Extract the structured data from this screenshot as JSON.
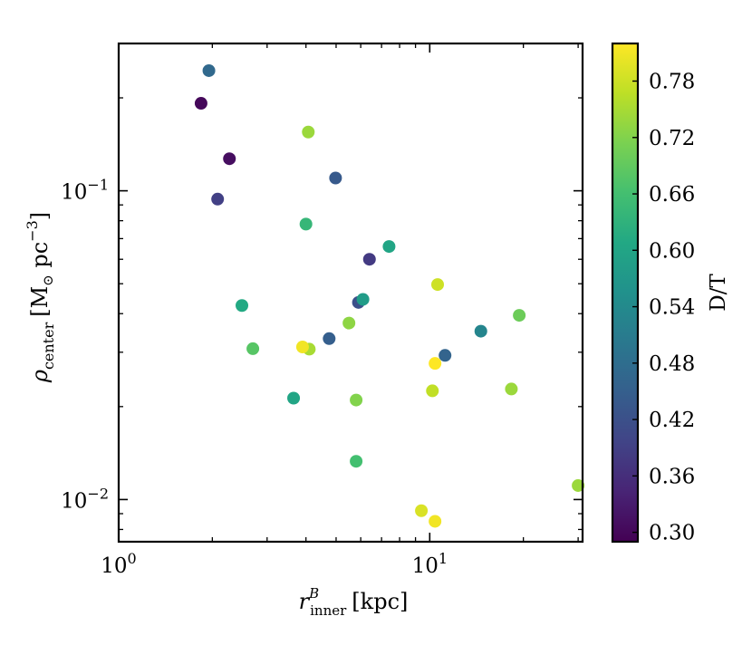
{
  "chart_data": {
    "type": "scatter",
    "x_scale": "log",
    "y_scale": "log",
    "xlim": [
      1,
      31
    ],
    "ylim": [
      0.0073,
      0.3
    ],
    "x_ticks": [
      {
        "value": 1,
        "base": "10",
        "exp": "0"
      },
      {
        "value": 10,
        "base": "10",
        "exp": "1"
      }
    ],
    "y_ticks": [
      {
        "value": 0.01,
        "base": "10",
        "exp": "−2"
      },
      {
        "value": 0.1,
        "base": "10",
        "exp": "−1"
      }
    ],
    "xlabel": {
      "symbol": "r",
      "sup": "B",
      "sub": "inner",
      "unit": "[kpc]"
    },
    "ylabel": {
      "symbol": "ρ",
      "sub": "center",
      "unit_pre": "[M",
      "unit_sun": "⊙",
      "unit_mid": " pc",
      "unit_sup": "−3",
      "unit_post": "]"
    },
    "colorbar": {
      "label": "D/T",
      "colormap": "viridis",
      "vmin": 0.29,
      "vmax": 0.82,
      "ticks": [
        "0.30",
        "0.36",
        "0.42",
        "0.48",
        "0.54",
        "0.60",
        "0.66",
        "0.72",
        "0.78"
      ]
    },
    "points": [
      {
        "x": 1.95,
        "y": 0.245,
        "c": 0.47
      },
      {
        "x": 1.84,
        "y": 0.192,
        "c": 0.3
      },
      {
        "x": 2.27,
        "y": 0.127,
        "c": 0.31
      },
      {
        "x": 2.08,
        "y": 0.094,
        "c": 0.39
      },
      {
        "x": 4.07,
        "y": 0.155,
        "c": 0.74
      },
      {
        "x": 4.98,
        "y": 0.11,
        "c": 0.44
      },
      {
        "x": 4.0,
        "y": 0.078,
        "c": 0.64
      },
      {
        "x": 7.4,
        "y": 0.066,
        "c": 0.6
      },
      {
        "x": 6.4,
        "y": 0.06,
        "c": 0.38
      },
      {
        "x": 2.49,
        "y": 0.0425,
        "c": 0.61
      },
      {
        "x": 5.9,
        "y": 0.0435,
        "c": 0.42
      },
      {
        "x": 6.1,
        "y": 0.0445,
        "c": 0.58
      },
      {
        "x": 10.6,
        "y": 0.0497,
        "c": 0.78
      },
      {
        "x": 19.4,
        "y": 0.0395,
        "c": 0.7
      },
      {
        "x": 5.5,
        "y": 0.0373,
        "c": 0.73
      },
      {
        "x": 14.6,
        "y": 0.0351,
        "c": 0.53
      },
      {
        "x": 2.7,
        "y": 0.0308,
        "c": 0.68
      },
      {
        "x": 4.1,
        "y": 0.0307,
        "c": 0.75
      },
      {
        "x": 3.9,
        "y": 0.0312,
        "c": 0.81
      },
      {
        "x": 4.75,
        "y": 0.0332,
        "c": 0.45
      },
      {
        "x": 11.2,
        "y": 0.0293,
        "c": 0.46
      },
      {
        "x": 10.4,
        "y": 0.0276,
        "c": 0.82
      },
      {
        "x": 10.2,
        "y": 0.0225,
        "c": 0.77
      },
      {
        "x": 18.3,
        "y": 0.0228,
        "c": 0.74
      },
      {
        "x": 3.65,
        "y": 0.0213,
        "c": 0.6
      },
      {
        "x": 5.8,
        "y": 0.021,
        "c": 0.72
      },
      {
        "x": 5.8,
        "y": 0.0133,
        "c": 0.66
      },
      {
        "x": 30.0,
        "y": 0.0111,
        "c": 0.74
      },
      {
        "x": 9.4,
        "y": 0.0092,
        "c": 0.79
      },
      {
        "x": 10.4,
        "y": 0.0085,
        "c": 0.81
      }
    ]
  }
}
